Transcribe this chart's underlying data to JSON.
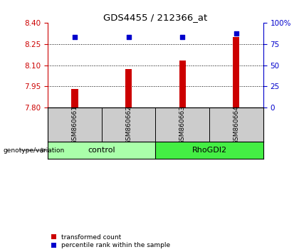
{
  "title": "GDS4455 / 212366_at",
  "samples": [
    "GSM860661",
    "GSM860662",
    "GSM860663",
    "GSM860664"
  ],
  "transformed_counts": [
    7.93,
    8.075,
    8.135,
    8.3
  ],
  "percentile_ranks": [
    83,
    83.5,
    83.5,
    87
  ],
  "ylim_left": [
    7.8,
    8.4
  ],
  "yticks_left": [
    7.8,
    7.95,
    8.1,
    8.25,
    8.4
  ],
  "ylim_right": [
    0,
    100
  ],
  "yticks_right": [
    0,
    25,
    50,
    75,
    100
  ],
  "yticklabels_right": [
    "0",
    "25",
    "50",
    "75",
    "100%"
  ],
  "bar_color": "#cc0000",
  "dot_color": "#0000cc",
  "group_labels": [
    "control",
    "RhoGDI2"
  ],
  "group_colors": [
    "#aaffaa",
    "#44ee44"
  ],
  "label_area_color": "#cccccc",
  "bar_width": 0.12,
  "x_positions": [
    1,
    2,
    3,
    4
  ],
  "left_axis_color": "#cc0000",
  "right_axis_color": "#0000cc",
  "background_color": "#ffffff",
  "legend_labels": [
    "transformed count",
    "percentile rank within the sample"
  ]
}
